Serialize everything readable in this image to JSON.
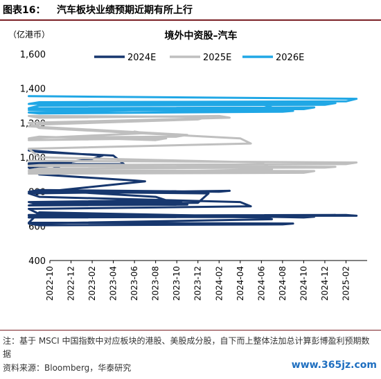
{
  "header": {
    "figure_label": "图表16：",
    "figure_title": "汽车板块业绩预期近期有所上行"
  },
  "chart_data": {
    "type": "line",
    "title": "境外中资股–汽车",
    "ylabel": "（亿港币）",
    "ylim": [
      400,
      1600
    ],
    "yticks": [
      400,
      600,
      800,
      1000,
      1200,
      1400,
      1600
    ],
    "ytick_labels": [
      "400",
      "600",
      "800",
      "1,000",
      "1,200",
      "1,400",
      "1,600"
    ],
    "xtick_labels": [
      "2022-10",
      "2022-12",
      "2023-02",
      "2023-04",
      "2023-06",
      "2023-08",
      "2023-10",
      "2023-12",
      "2024-02",
      "2024-04",
      "2024-06",
      "2024-08",
      "2024-10",
      "2024-12",
      "2025-02"
    ],
    "grid": false,
    "legend_position": "top",
    "series": [
      {
        "name": "2024E",
        "color": "#17376e",
        "x": [
          "2022-10",
          "2022-11",
          "2022-11",
          "2022-12",
          "2023-01",
          "2023-01",
          "2023-02",
          "2023-02",
          "2023-03",
          "2023-03",
          "2023-04",
          "2023-04",
          "2023-05",
          "2023-05",
          "2023-06",
          "2023-06",
          "2023-07",
          "2023-07",
          "2023-08",
          "2023-08",
          "2023-09",
          "2023-09",
          "2023-10",
          "2023-10",
          "2023-11",
          "2023-11",
          "2023-12",
          "2023-12",
          "2024-01",
          "2024-01",
          "2024-02",
          "2024-02",
          "2024-03",
          "2024-03",
          "2024-04",
          "2024-04",
          "2024-05",
          "2024-05",
          "2024-06",
          "2024-06",
          "2024-07",
          "2024-07",
          "2024-08",
          "2024-08",
          "2024-09",
          "2024-09",
          "2024-10",
          "2024-10",
          "2024-11",
          "2024-11",
          "2024-12",
          "2024-12",
          "2025-01",
          "2025-01",
          "2025-02",
          "2025-02",
          "2025-03"
        ],
        "values": [
          950,
          940,
          910,
          970,
          965,
          950,
          990,
          1010,
          1040,
          1030,
          1010,
          960,
          960,
          900,
          865,
          860,
          790,
          810,
          770,
          750,
          740,
          730,
          745,
          725,
          720,
          730,
          735,
          790,
          800,
          810,
          800,
          805,
          790,
          770,
          740,
          715,
          700,
          670,
          650,
          640,
          615,
          605,
          610,
          615,
          620,
          680,
          650,
          655,
          650,
          655,
          660,
          665,
          660,
          655,
          665,
          660,
          665
        ]
      },
      {
        "name": "2025E",
        "color": "#bfbfbf",
        "x": [
          "2023-06",
          "2023-06",
          "2023-07",
          "2023-07",
          "2023-08",
          "2023-08",
          "2023-09",
          "2023-09",
          "2023-10",
          "2023-10",
          "2023-11",
          "2023-11",
          "2023-12",
          "2023-12",
          "2024-01",
          "2024-01",
          "2024-02",
          "2024-02",
          "2024-03",
          "2024-03",
          "2024-04",
          "2024-04",
          "2024-05",
          "2024-05",
          "2024-06",
          "2024-06",
          "2024-07",
          "2024-07",
          "2024-08",
          "2024-08",
          "2024-09",
          "2024-09",
          "2024-10",
          "2024-10",
          "2024-11",
          "2024-11",
          "2024-12",
          "2024-12",
          "2025-01",
          "2025-01",
          "2025-02",
          "2025-02",
          "2025-03"
        ],
        "values": [
          1150,
          1140,
          1110,
          1120,
          1100,
          1110,
          1100,
          1115,
          1120,
          1130,
          1180,
          1190,
          1220,
          1235,
          1240,
          1230,
          1240,
          1230,
          1200,
          1170,
          1110,
          1080,
          1050,
          1000,
          970,
          930,
          905,
          915,
          920,
          910,
          915,
          905,
          910,
          920,
          925,
          935,
          940,
          945,
          950,
          955,
          960,
          970,
          980
        ]
      },
      {
        "name": "2026E",
        "color": "#20a7e5",
        "x": [
          "2024-06",
          "2024-06",
          "2024-07",
          "2024-07",
          "2024-08",
          "2024-08",
          "2024-09",
          "2024-09",
          "2024-10",
          "2024-10",
          "2024-11",
          "2024-11",
          "2024-12",
          "2024-12",
          "2025-01",
          "2025-01",
          "2025-02",
          "2025-02",
          "2025-03"
        ],
        "values": [
          1310,
          1290,
          1260,
          1255,
          1265,
          1270,
          1275,
          1285,
          1280,
          1290,
          1285,
          1300,
          1305,
          1315,
          1310,
          1320,
          1325,
          1340,
          1355
        ]
      }
    ]
  },
  "footer": {
    "note": "注：基于 MSCI 中国指数中对应板块的港股、美股成分股，自下而上整体法加总计算彭博盈利预期数据",
    "source": "资料来源：Bloomberg，华泰研究",
    "watermark": "www.365jz.com"
  }
}
